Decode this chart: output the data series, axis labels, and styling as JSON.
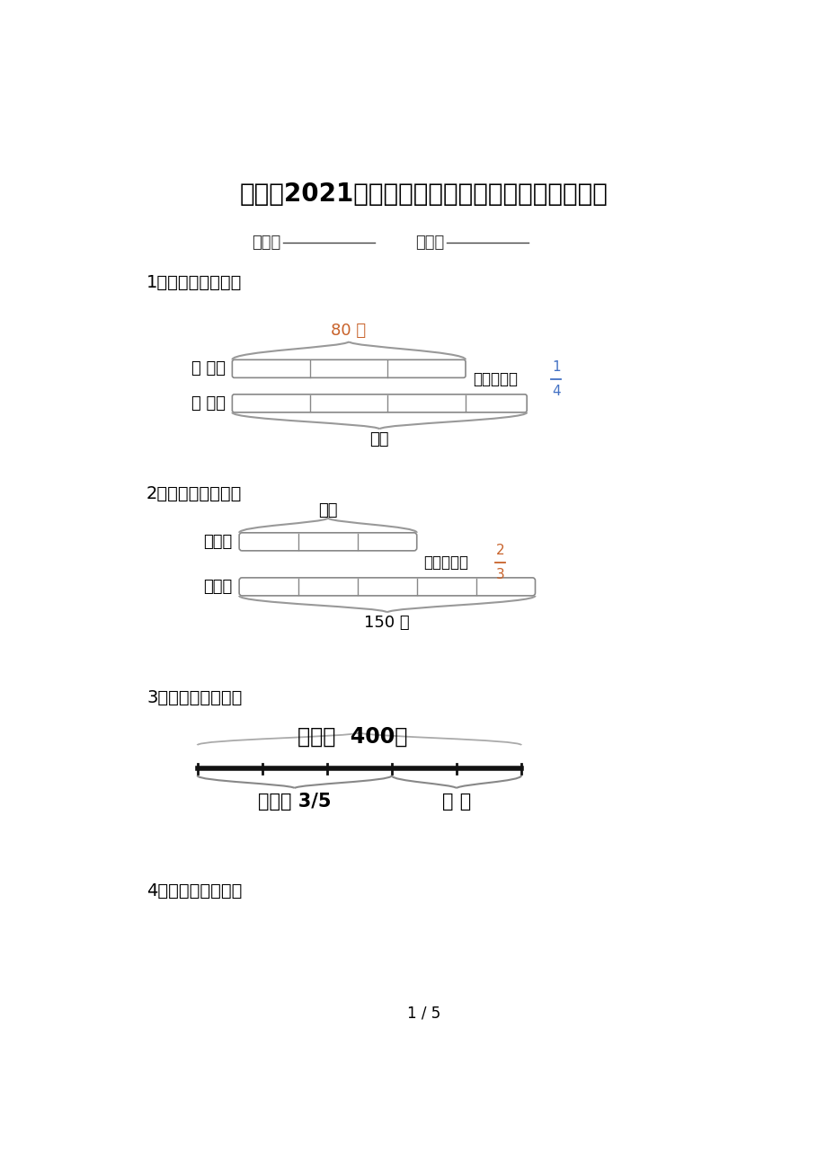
{
  "title": "冀教版2021年六年级数学上册看图列方程计算专项",
  "class_label": "班级：",
  "name_label": "姓名：",
  "section1": "1．看图列式计算。",
  "section2": "2．看图列式计算。",
  "section3": "3．看图列式计算。",
  "section4": "4．看图列式计算。",
  "page": "1 / 5",
  "bg_color": "#ffffff",
  "text_color": "#000000",
  "gray_color": "#666666",
  "diagram1": {
    "label_aug": "八 月：",
    "label_sep": "九 月：",
    "brace_label": "80 吨",
    "brace_label_color": "#c8622a",
    "extra_label": "比八月份多",
    "fraction_num": "1",
    "fraction_den": "4",
    "fraction_color": "#4472c4",
    "question_label": "？吨"
  },
  "diagram2": {
    "label_red": "红粉笔",
    "label_white": "白粉笔",
    "question_label": "？盒",
    "extra_label": "比红粉笔多",
    "fraction_num": "2",
    "fraction_den": "3",
    "fraction_color": "#c8622a",
    "bottom_label": "150 盒"
  },
  "diagram3": {
    "title_label": "一条路  400米",
    "label_done": "已修了 3/5",
    "label_question": "？ 米"
  }
}
